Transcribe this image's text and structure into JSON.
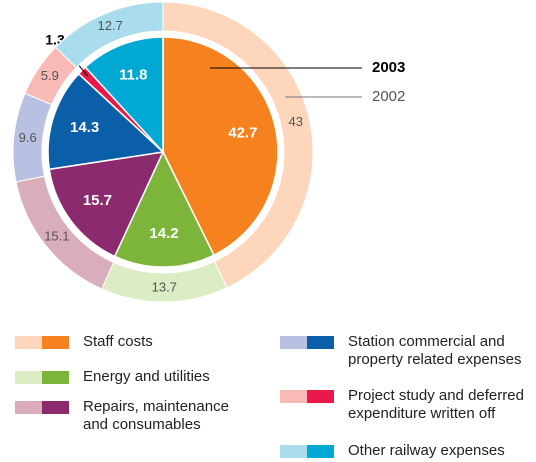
{
  "chart_data": {
    "type": "pie",
    "categories": [
      "Staff costs",
      "Energy and utilities",
      "Repairs, maintenance and consumables",
      "Station commercial and property related expenses",
      "Project study and deferred expenditure written off",
      "Other railway expenses"
    ],
    "series": [
      {
        "name": "2003",
        "values": [
          42.7,
          14.2,
          15.7,
          14.3,
          1.3,
          11.8
        ],
        "colors": [
          "#f5821f",
          "#7db53b",
          "#8c2a6e",
          "#0a5fa8",
          "#e8194a",
          "#00a9d4"
        ]
      },
      {
        "name": "2002",
        "values": [
          43.0,
          13.7,
          15.1,
          9.6,
          5.9,
          12.7
        ],
        "colors": [
          "#fdd6bc",
          "#dcecc4",
          "#d9adb9",
          "#b9c1e2",
          "#f9b9b4",
          "#a9dcec"
        ]
      }
    ]
  }
}
